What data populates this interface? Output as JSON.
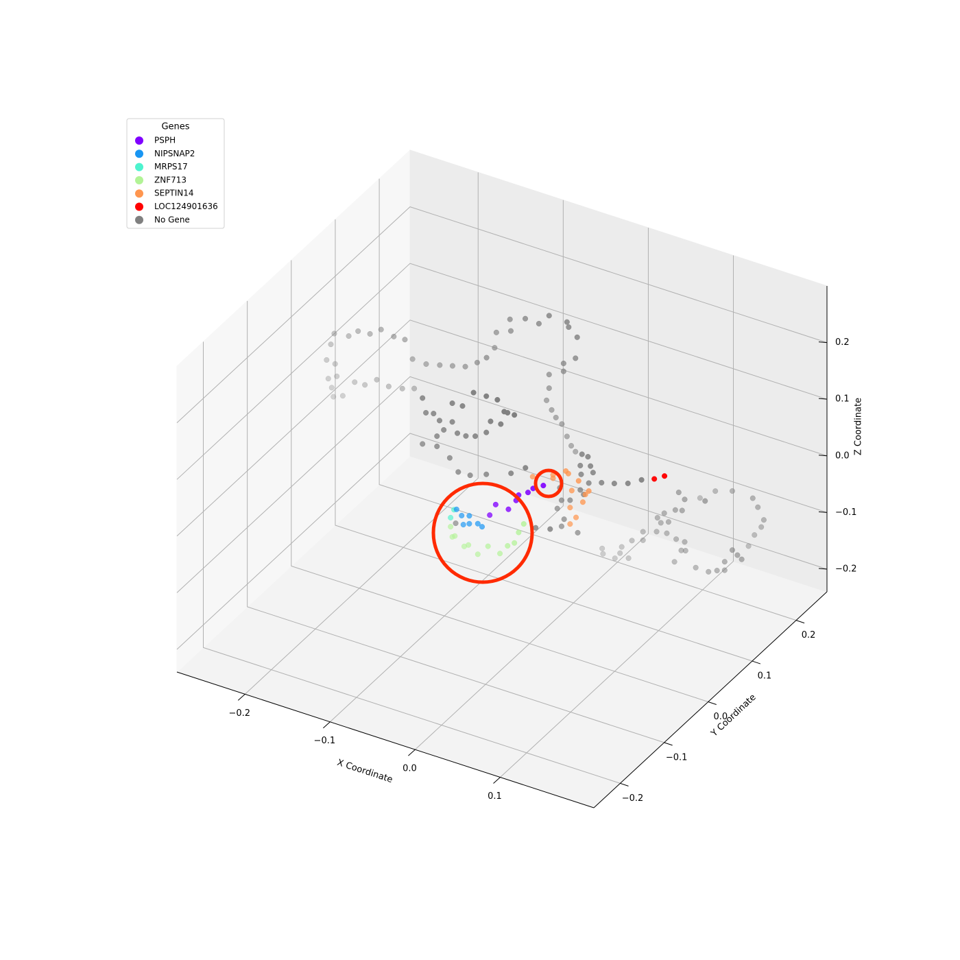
{
  "chart_data": {
    "type": "scatter3d",
    "xlabel": "X Coordinate",
    "ylabel": "Y Coordinate",
    "zlabel": "Z Coordinate",
    "xlim": [
      -0.28,
      0.21
    ],
    "ylim": [
      -0.26,
      0.27
    ],
    "zlim": [
      -0.24,
      0.3
    ],
    "xticks": [
      {
        "value": -0.2,
        "label": "−0.2"
      },
      {
        "value": -0.1,
        "label": "−0.1"
      },
      {
        "value": 0.0,
        "label": "0.0"
      },
      0.1
    ],
    "yticks": [
      {
        "value": -0.2,
        "label": "−0.2"
      },
      {
        "value": -0.1,
        "label": "−0.1"
      },
      {
        "value": 0.0,
        "label": "0.0"
      },
      0.1,
      0.2
    ],
    "zticks": [
      {
        "value": -0.2,
        "label": "−0.2"
      },
      {
        "value": -0.1,
        "label": "−0.1"
      },
      {
        "value": 0.0,
        "label": "0.0"
      },
      0.1,
      0.2
    ],
    "grid": true,
    "depthshade": true,
    "legend": {
      "title": "Genes",
      "loc": "upper left"
    },
    "series": [
      {
        "name": "PSPH",
        "color": "#8000ff",
        "x": [
          0.055,
          0.043,
          0.037,
          0.026,
          0.023,
          0.014,
          -0.001,
          -0.008
        ],
        "y": [
          -0.075,
          -0.075,
          -0.075,
          -0.075,
          -0.075,
          -0.075,
          -0.075,
          -0.075
        ],
        "z": [
          0.12,
          0.109,
          0.099,
          0.089,
          0.078,
          0.058,
          0.059,
          0.037
        ]
      },
      {
        "name": "NIPSNAP2",
        "color": "#1996f3",
        "x": [
          -0.047,
          -0.041,
          -0.032,
          -0.022,
          -0.017,
          -0.032,
          -0.039
        ],
        "y": [
          -0.075,
          -0.075,
          -0.075,
          -0.075,
          -0.075,
          -0.075,
          -0.075
        ],
        "z": [
          0.028,
          0.02,
          0.024,
          0.015,
          0.012,
          0.01,
          0.005
        ]
      },
      {
        "name": "MRPS17",
        "color": "#4df3ce",
        "x": [
          -0.05,
          -0.054
        ],
        "y": [
          -0.075,
          -0.075
        ],
        "z": [
          0.026,
          0.01
        ]
      },
      {
        "name": "ZNF713",
        "color": "#b2f396",
        "x": [
          -0.054,
          -0.052,
          -0.049,
          -0.038,
          -0.033,
          -0.022,
          -0.01,
          0.004,
          0.013,
          0.021,
          0.026,
          0.032
        ],
        "y": [
          -0.075,
          -0.075,
          -0.075,
          -0.075,
          -0.075,
          -0.075,
          -0.075,
          -0.075,
          -0.075,
          -0.075,
          -0.075,
          -0.075
        ],
        "z": [
          -0.006,
          -0.023,
          -0.02,
          -0.033,
          -0.028,
          -0.039,
          -0.019,
          -0.025,
          -0.007,
          0.002,
          0.023,
          0.041
        ]
      },
      {
        "name": "SEPTIN14",
        "color": "#ff964f",
        "x": [
          0.014,
          0.038,
          0.038,
          0.053,
          0.056,
          0.068,
          0.06,
          0.08,
          0.076,
          0.058,
          0.065,
          0.073,
          0.058
        ],
        "y": [
          -0.02,
          -0.02,
          -0.02,
          -0.02,
          -0.02,
          -0.02,
          -0.02,
          -0.02,
          -0.02,
          -0.02,
          -0.02,
          -0.02,
          -0.02
        ],
        "z": [
          0.076,
          0.091,
          0.085,
          0.105,
          0.102,
          0.095,
          0.074,
          0.083,
          0.075,
          0.043,
          0.029,
          0.06,
          0.014
        ]
      },
      {
        "name": "LOC124901636",
        "color": "#ff0000",
        "x": [
          0.157,
          0.169
        ],
        "y": [
          -0.02,
          -0.02
        ],
        "z": [
          0.142,
          0.153
        ]
      },
      {
        "name": "No Gene",
        "color": "#808080",
        "x": [
          -0.245,
          -0.228,
          -0.217,
          -0.203,
          -0.19,
          -0.175,
          -0.162,
          -0.153,
          -0.137,
          -0.121,
          -0.106,
          -0.091,
          -0.077,
          -0.066,
          -0.249,
          -0.254,
          -0.244,
          -0.242,
          -0.252,
          -0.248,
          -0.246,
          -0.235,
          -0.221,
          -0.209,
          -0.195,
          -0.181,
          -0.165,
          -0.151,
          -0.087,
          -0.083,
          -0.074,
          -0.067,
          -0.062,
          -0.07,
          -0.052,
          -0.052,
          -0.046,
          -0.036,
          -0.025,
          -0.012,
          -0.007,
          0.005,
          0.009,
          0.013,
          0.021,
          0.001,
          -0.012,
          -0.027,
          -0.04,
          -0.087,
          -0.07,
          -0.055,
          -0.045,
          -0.031,
          -0.012,
          0.017,
          0.034,
          0.046,
          0.063,
          -0.048,
          -0.072,
          -0.07,
          -0.054,
          -0.053,
          -0.036,
          -0.02,
          -0.008,
          0.013,
          0.015,
          0.025,
          0.023,
          0.009,
          0.009,
          -0.008,
          -0.008,
          -0.011,
          -0.005,
          0.0,
          0.007,
          0.013,
          0.018,
          0.023,
          0.072,
          0.079,
          0.07,
          0.082,
          0.071,
          0.085,
          0.08,
          0.07,
          0.074,
          0.046,
          0.048,
          0.043,
          0.058,
          0.051,
          0.048,
          0.067,
          0.095,
          0.11,
          0.126,
          0.142,
          0.044,
          0.045,
          0.059,
          0.065,
          0.067,
          0.075,
          0.079,
          0.092,
          0.092,
          0.108,
          0.109,
          0.113,
          0.117,
          0.122,
          0.13,
          0.134,
          0.138,
          0.12,
          0.131,
          0.137,
          0.142,
          0.141,
          0.129,
          0.154,
          0.165,
          0.169,
          0.179,
          0.188,
          0.188,
          0.197,
          0.203,
          0.208,
          0.141,
          0.185,
          0.192,
          0.2,
          0.203,
          0.196,
          0.19,
          0.166,
          0.146,
          0.128
        ],
        "y": [
          0.03,
          0.03,
          0.03,
          0.03,
          0.03,
          0.03,
          0.03,
          0.03,
          0.03,
          0.03,
          0.03,
          0.03,
          0.03,
          0.03,
          0.03,
          0.03,
          0.03,
          0.03,
          0.03,
          0.03,
          0.03,
          0.03,
          0.03,
          0.03,
          0.03,
          0.03,
          0.03,
          0.03,
          -0.075,
          -0.075,
          -0.075,
          -0.075,
          -0.075,
          -0.075,
          -0.075,
          -0.075,
          -0.075,
          -0.075,
          -0.075,
          -0.075,
          -0.075,
          -0.075,
          -0.075,
          -0.075,
          -0.075,
          -0.075,
          -0.075,
          -0.075,
          -0.075,
          -0.075,
          -0.075,
          -0.075,
          -0.075,
          -0.075,
          -0.075,
          -0.075,
          -0.075,
          -0.075,
          -0.075,
          -0.075,
          0.06,
          0.06,
          0.06,
          0.06,
          0.06,
          0.06,
          0.06,
          0.06,
          0.06,
          0.06,
          0.06,
          0.06,
          0.06,
          0.06,
          0.06,
          0.06,
          0.06,
          0.06,
          0.06,
          0.06,
          0.06,
          0.06,
          -0.02,
          -0.02,
          -0.02,
          -0.02,
          -0.02,
          -0.02,
          -0.02,
          -0.02,
          -0.02,
          -0.02,
          -0.02,
          -0.02,
          -0.02,
          -0.02,
          -0.02,
          -0.02,
          -0.02,
          -0.02,
          -0.02,
          -0.02,
          0.08,
          0.08,
          0.08,
          0.08,
          0.08,
          0.08,
          0.08,
          0.08,
          0.08,
          0.08,
          0.08,
          0.08,
          0.08,
          0.08,
          0.08,
          0.08,
          0.08,
          0.08,
          0.08,
          0.08,
          0.08,
          0.08,
          0.08,
          0.08,
          0.08,
          0.08,
          0.08,
          0.08,
          0.08,
          0.08,
          0.08,
          0.08,
          0.08,
          0.14,
          0.14,
          0.14,
          0.14,
          0.14,
          0.14,
          0.14,
          0.14,
          0.14
        ],
        "z": [
          0.166,
          0.17,
          0.184,
          0.186,
          0.2,
          0.195,
          0.196,
          0.166,
          0.165,
          0.171,
          0.177,
          0.183,
          0.197,
          0.211,
          0.145,
          0.115,
          0.113,
          0.092,
          0.083,
          0.069,
          0.054,
          0.061,
          0.092,
          0.093,
          0.109,
          0.104,
          0.108,
          0.115,
          0.205,
          0.181,
          0.184,
          0.175,
          0.161,
          0.146,
          0.18,
          0.213,
          0.163,
          0.163,
          0.168,
          0.181,
          0.203,
          0.204,
          0.228,
          0.228,
          0.228,
          0.245,
          0.245,
          0.244,
          0.214,
          0.124,
          0.128,
          0.115,
          0.095,
          0.096,
          0.107,
          0.123,
          0.141,
          0.041,
          0.047,
          0.003,
          0.204,
          0.232,
          0.263,
          0.243,
          0.273,
          0.272,
          0.292,
          0.291,
          0.283,
          0.27,
          0.232,
          0.216,
          0.202,
          0.188,
          0.164,
          0.141,
          0.127,
          0.116,
          0.108,
          0.089,
          0.075,
          0.067,
          0.144,
          0.143,
          0.123,
          0.128,
          0.108,
          0.118,
          0.097,
          0.08,
          0.074,
          0.072,
          0.051,
          0.034,
          0.056,
          0.019,
          0.005,
          0.003,
          0.105,
          0.111,
          0.119,
          0.133,
          -0.108,
          -0.117,
          -0.118,
          -0.106,
          -0.094,
          -0.11,
          -0.077,
          -0.055,
          -0.07,
          -0.047,
          -0.022,
          -0.029,
          -0.01,
          -0.023,
          0.002,
          0.035,
          0.005,
          -0.044,
          -0.049,
          -0.066,
          -0.064,
          -0.049,
          -0.09,
          -0.088,
          0.035,
          -0.088,
          -0.081,
          -0.061,
          -0.076,
          -0.036,
          -0.042,
          -0.047,
          0.026,
          -0.078,
          -0.055,
          -0.037,
          -0.023,
          -0.004,
          0.009,
          0.01,
          0.0,
          -0.021
        ]
      }
    ]
  }
}
